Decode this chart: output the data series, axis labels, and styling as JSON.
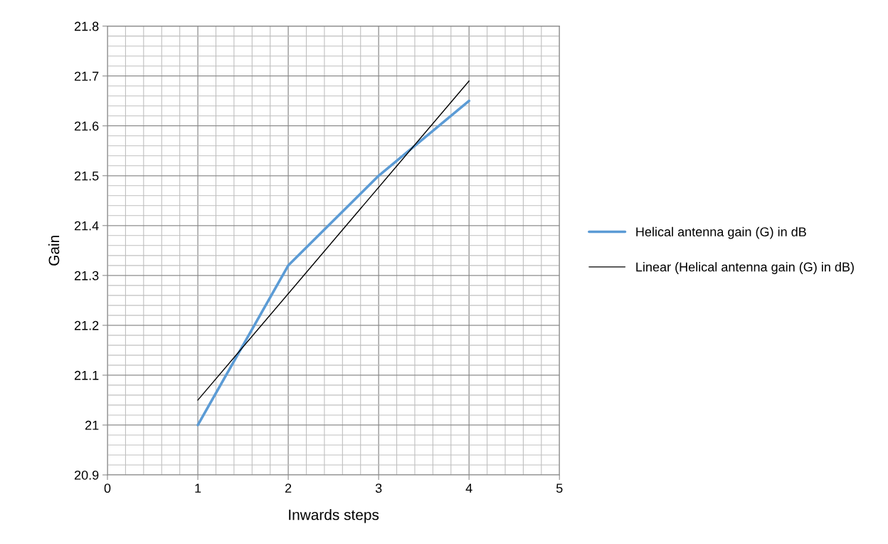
{
  "chart_data": {
    "type": "line",
    "xlabel": "Inwards steps",
    "ylabel": "Gain",
    "series": [
      {
        "name": "Helical antenna gain (G) in dB",
        "color": "#5b9bd5",
        "x": [
          1,
          2,
          3,
          4
        ],
        "values": [
          21.0,
          21.32,
          21.5,
          21.65
        ]
      },
      {
        "name": "Linear (Helical antenna gain (G) in dB)",
        "color": "#000000",
        "x": [
          1,
          4
        ],
        "values": [
          21.05,
          21.69
        ]
      }
    ],
    "xlim": [
      0,
      5
    ],
    "xticks": [
      0,
      1,
      2,
      3,
      4,
      5
    ],
    "ylim": [
      20.9,
      21.8
    ],
    "yticks": [
      {
        "value": 20.9,
        "label": "20.9"
      },
      {
        "value": 21.0,
        "label": "21"
      },
      {
        "value": 21.1,
        "label": "21.1"
      },
      {
        "value": 21.2,
        "label": "21.2"
      },
      {
        "value": 21.3,
        "label": "21.3"
      },
      {
        "value": 21.4,
        "label": "21.4"
      },
      {
        "value": 21.5,
        "label": "21.5"
      },
      {
        "value": 21.6,
        "label": "21.6"
      },
      {
        "value": 21.7,
        "label": "21.7"
      },
      {
        "value": 21.8,
        "label": "21.8"
      }
    ],
    "grid": true,
    "legend": "right",
    "marker": "none"
  }
}
